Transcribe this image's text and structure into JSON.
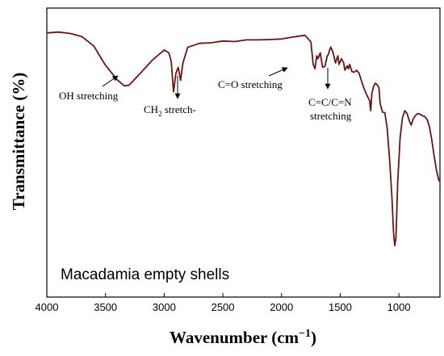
{
  "chart_data": {
    "type": "line",
    "title": "",
    "xlabel": "Wavenumber (cm",
    "xlabel_sup": "−1",
    "xlabel_close": ")",
    "ylabel": "Transmittance (%)",
    "xlim": [
      4000,
      650
    ],
    "x_reversed": true,
    "ylim": [
      0,
      100
    ],
    "y_ticks_shown": false,
    "x_ticks": [
      4000,
      3500,
      3000,
      2500,
      2000,
      1500,
      1000
    ],
    "x_tick_labels": [
      "4000",
      "3500",
      "3000",
      "2500",
      "2000",
      "1500",
      "1000"
    ],
    "grid": false,
    "legend": "none",
    "sample_label": "Macadamia empty shells",
    "series": [
      {
        "color": "#6b1414",
        "points": [
          [
            4000,
            91.4
          ],
          [
            3900,
            91.7
          ],
          [
            3800,
            91.2
          ],
          [
            3700,
            90.1
          ],
          [
            3600,
            86.9
          ],
          [
            3500,
            80.2
          ],
          [
            3400,
            75.2
          ],
          [
            3340,
            73.1
          ],
          [
            3300,
            73.3
          ],
          [
            3200,
            77.6
          ],
          [
            3100,
            82.0
          ],
          [
            3000,
            85.5
          ],
          [
            2960,
            84.5
          ],
          [
            2940,
            81.5
          ],
          [
            2920,
            71.0
          ],
          [
            2900,
            77.5
          ],
          [
            2880,
            79.5
          ],
          [
            2860,
            75.0
          ],
          [
            2840,
            81.0
          ],
          [
            2800,
            86.4
          ],
          [
            2700,
            87.8
          ],
          [
            2600,
            88.0
          ],
          [
            2500,
            88.6
          ],
          [
            2400,
            88.4
          ],
          [
            2300,
            89.0
          ],
          [
            2200,
            89.0
          ],
          [
            2100,
            89.1
          ],
          [
            2000,
            89.3
          ],
          [
            1900,
            90.0
          ],
          [
            1800,
            90.6
          ],
          [
            1750,
            88.3
          ],
          [
            1730,
            80.5
          ],
          [
            1715,
            79.0
          ],
          [
            1700,
            83.5
          ],
          [
            1690,
            82.5
          ],
          [
            1670,
            84.5
          ],
          [
            1650,
            79.5
          ],
          [
            1630,
            79.8
          ],
          [
            1610,
            83.5
          ],
          [
            1600,
            84.0
          ],
          [
            1590,
            85.5
          ],
          [
            1580,
            86.5
          ],
          [
            1560,
            84.5
          ],
          [
            1540,
            81.0
          ],
          [
            1520,
            83.5
          ],
          [
            1510,
            80.5
          ],
          [
            1490,
            82.5
          ],
          [
            1470,
            81.0
          ],
          [
            1460,
            78.5
          ],
          [
            1440,
            80.0
          ],
          [
            1430,
            79.0
          ],
          [
            1420,
            80.5
          ],
          [
            1400,
            78.0
          ],
          [
            1380,
            77.8
          ],
          [
            1360,
            78.5
          ],
          [
            1340,
            77.5
          ],
          [
            1320,
            75.0
          ],
          [
            1300,
            72.5
          ],
          [
            1280,
            70.5
          ],
          [
            1250,
            68.0
          ],
          [
            1240,
            64.5
          ],
          [
            1230,
            70.5
          ],
          [
            1215,
            73.0
          ],
          [
            1200,
            74.0
          ],
          [
            1185,
            73.5
          ],
          [
            1170,
            72.5
          ],
          [
            1160,
            67.0
          ],
          [
            1140,
            64.0
          ],
          [
            1120,
            63.8
          ],
          [
            1100,
            58.5
          ],
          [
            1080,
            48.0
          ],
          [
            1060,
            35.0
          ],
          [
            1045,
            22.0
          ],
          [
            1035,
            17.8
          ],
          [
            1025,
            20.5
          ],
          [
            1010,
            40.0
          ],
          [
            990,
            55.0
          ],
          [
            970,
            62.0
          ],
          [
            950,
            64.5
          ],
          [
            930,
            63.5
          ],
          [
            910,
            60.8
          ],
          [
            895,
            59.5
          ],
          [
            880,
            61.5
          ],
          [
            860,
            62.8
          ],
          [
            840,
            63.5
          ],
          [
            820,
            63.3
          ],
          [
            800,
            62.7
          ],
          [
            780,
            62.5
          ],
          [
            760,
            61.5
          ],
          [
            740,
            59.0
          ],
          [
            720,
            54.5
          ],
          [
            700,
            49.0
          ],
          [
            680,
            44.0
          ],
          [
            660,
            40.5
          ],
          [
            650,
            40.0
          ]
        ]
      }
    ],
    "annotations": [
      {
        "text": "OH stretching"
      },
      {
        "text": "CH",
        "sub": "2",
        "rest": " stretch-"
      },
      {
        "text": "C=O stretching"
      },
      {
        "line1": "C=C/C=N",
        "line2": "stretching"
      }
    ]
  }
}
